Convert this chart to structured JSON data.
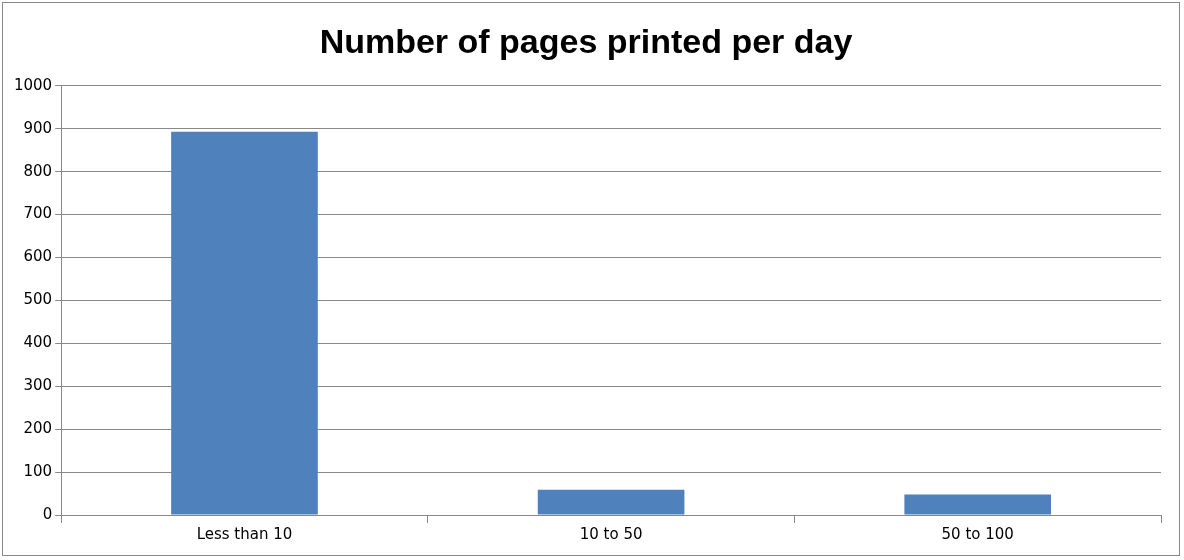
{
  "chart_data": {
    "type": "bar",
    "title": "Number of pages printed per day",
    "categories": [
      "Less than 10",
      "10 to 50",
      "50 to 100"
    ],
    "values": [
      893,
      59,
      48
    ],
    "color": "#4f81bd",
    "ylim": [
      0,
      1000
    ],
    "yticks": [
      0,
      100,
      200,
      300,
      400,
      500,
      600,
      700,
      800,
      900,
      1000
    ],
    "grid": "y",
    "legend": false
  }
}
